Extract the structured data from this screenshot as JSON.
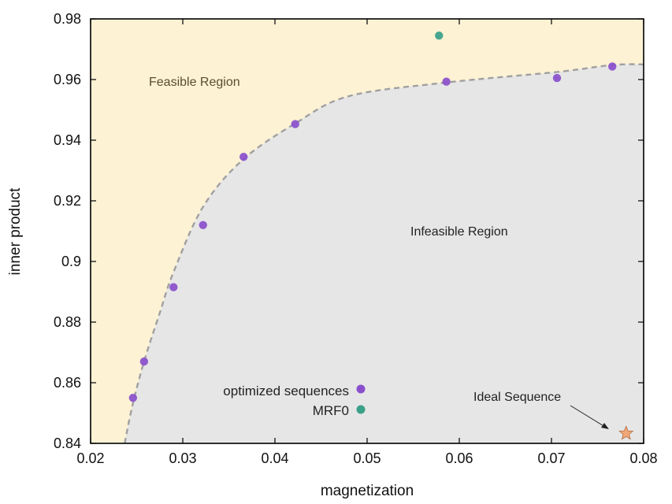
{
  "chart_data": {
    "type": "scatter",
    "xlabel": "magnetization",
    "ylabel": "inner product",
    "xlim": [
      0.02,
      0.08
    ],
    "ylim": [
      0.84,
      0.98
    ],
    "x_ticks": [
      "0.02",
      "0.03",
      "0.04",
      "0.05",
      "0.06",
      "0.07",
      "0.08"
    ],
    "y_ticks": [
      "0.84",
      "0.86",
      "0.88",
      "0.9",
      "0.92",
      "0.94",
      "0.96",
      "0.98"
    ],
    "grid": false,
    "legend_position": "bottom-center",
    "regions": {
      "feasible": {
        "label": "Feasible Region",
        "color": "#fdf2d4"
      },
      "infeasible": {
        "label": "Infeasible Region",
        "color": "#e6e6e6"
      }
    },
    "boundary": {
      "color": "#a0a0a0",
      "x": [
        0.0237,
        0.0245,
        0.0258,
        0.0275,
        0.029,
        0.0322,
        0.0365,
        0.0422,
        0.048,
        0.0585,
        0.0706,
        0.0766,
        0.08
      ],
      "y": [
        0.84,
        0.852,
        0.867,
        0.883,
        0.8965,
        0.918,
        0.9335,
        0.9455,
        0.9545,
        0.959,
        0.9625,
        0.9648,
        0.965
      ]
    },
    "series": [
      {
        "name": "optimized sequences",
        "color": "#8a4fcc",
        "x": [
          0.0246,
          0.0258,
          0.029,
          0.0322,
          0.0366,
          0.0422,
          0.0586,
          0.0706,
          0.0766
        ],
        "y": [
          0.855,
          0.867,
          0.8915,
          0.912,
          0.9345,
          0.9453,
          0.9593,
          0.9605,
          0.9643
        ]
      },
      {
        "name": "MRF0",
        "color": "#3aa088",
        "x": [
          0.0578
        ],
        "y": [
          0.9745
        ]
      }
    ],
    "annotations": [
      {
        "label": "Ideal Sequence",
        "x": 0.0781,
        "y": 0.8433,
        "marker": "star",
        "color": "#f0a878"
      }
    ]
  }
}
